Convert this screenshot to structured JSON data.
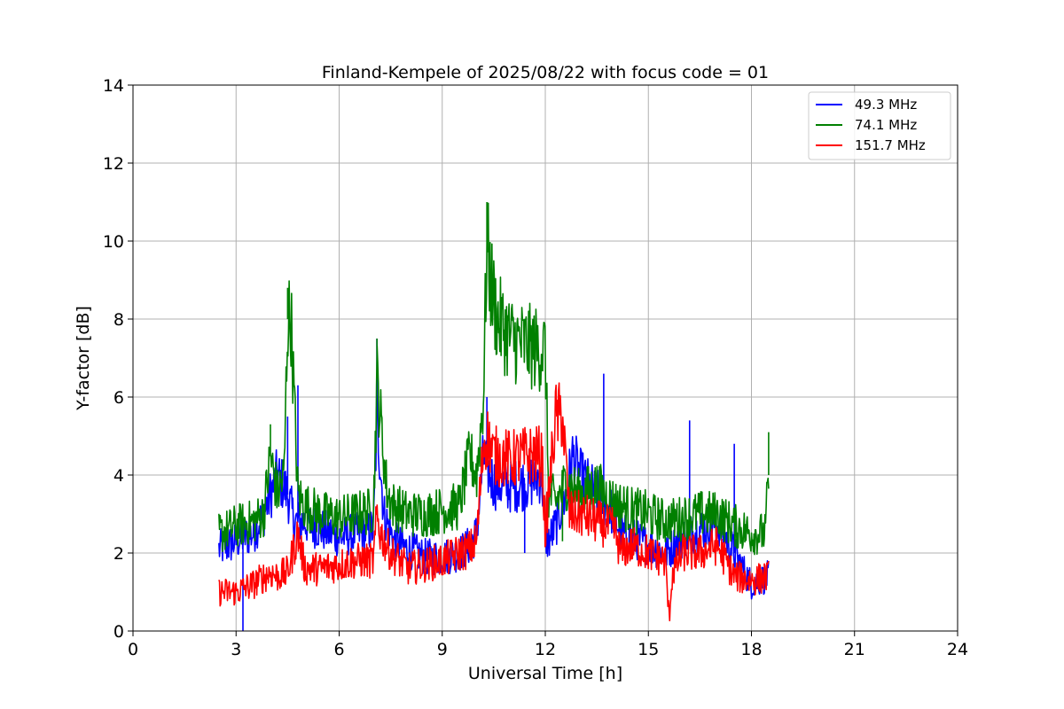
{
  "chart_data": {
    "type": "line",
    "title": "Finland-Kempele of 2025/08/22 with focus code = 01",
    "xlabel": "Universal Time [h]",
    "ylabel": "Y-factor [dB]",
    "xlim": [
      0,
      24
    ],
    "ylim": [
      0,
      14
    ],
    "xticks": [
      0,
      3,
      6,
      9,
      12,
      15,
      18,
      21,
      24
    ],
    "yticks": [
      0,
      2,
      4,
      6,
      8,
      10,
      12,
      14
    ],
    "grid": true,
    "legend_position": "top-right",
    "series": [
      {
        "name": " 49.3 MHz",
        "color": "#0000ff",
        "x": [
          2.5,
          2.8,
          3.0,
          3.2,
          3.5,
          3.8,
          4.0,
          4.2,
          4.5,
          4.7,
          5.0,
          5.5,
          6.0,
          6.5,
          7.0,
          7.1,
          7.3,
          7.6,
          8.0,
          8.5,
          9.0,
          9.5,
          9.8,
          10.0,
          10.2,
          10.3,
          10.5,
          11.0,
          11.5,
          11.9,
          12.0,
          12.1,
          12.3,
          12.6,
          12.8,
          13.0,
          13.5,
          14.0,
          14.2,
          14.5,
          15.0,
          15.5,
          16.0,
          16.5,
          17.0,
          17.5,
          18.0,
          18.5
        ],
        "y": [
          2.1,
          2.2,
          2.3,
          2.4,
          2.5,
          3.0,
          3.5,
          4.0,
          3.5,
          2.8,
          2.8,
          2.6,
          2.4,
          2.5,
          2.6,
          5.5,
          3.0,
          2.3,
          2.1,
          1.9,
          1.9,
          2.0,
          2.2,
          2.5,
          4.5,
          4.2,
          3.8,
          3.7,
          3.8,
          4.0,
          2.4,
          2.3,
          2.7,
          3.5,
          4.5,
          4.0,
          3.5,
          3.0,
          2.5,
          2.4,
          2.2,
          2.0,
          2.4,
          2.6,
          2.8,
          2.0,
          1.2,
          1.4
        ],
        "spikes": [
          [
            3.2,
            0.0
          ],
          [
            4.5,
            5.5
          ],
          [
            4.8,
            6.3
          ],
          [
            7.1,
            7.5
          ],
          [
            10.3,
            6.0
          ],
          [
            11.4,
            2.0
          ],
          [
            13.7,
            6.6
          ],
          [
            16.2,
            5.4
          ],
          [
            17.5,
            4.8
          ]
        ]
      },
      {
        "name": " 74.1 MHz",
        "color": "#008000",
        "x": [
          2.5,
          2.8,
          3.0,
          3.5,
          3.8,
          4.0,
          4.2,
          4.4,
          4.5,
          4.6,
          4.8,
          5.0,
          5.5,
          6.0,
          6.5,
          7.0,
          7.1,
          7.2,
          7.4,
          7.6,
          8.0,
          8.5,
          9.0,
          9.5,
          9.8,
          10.0,
          10.2,
          10.3,
          10.4,
          10.6,
          11.0,
          11.5,
          12.0,
          12.1,
          12.3,
          12.6,
          13.0,
          13.5,
          14.0,
          14.5,
          15.0,
          15.5,
          16.0,
          16.5,
          17.0,
          17.5,
          18.0,
          18.4,
          18.5
        ],
        "y": [
          2.5,
          2.6,
          2.7,
          2.8,
          3.0,
          4.5,
          3.5,
          4.0,
          8.0,
          8.0,
          3.5,
          3.2,
          3.0,
          2.9,
          3.0,
          3.1,
          6.5,
          5.5,
          3.5,
          3.2,
          3.0,
          3.0,
          3.1,
          3.2,
          4.5,
          4.0,
          6.0,
          10.0,
          9.0,
          8.0,
          7.5,
          7.3,
          7.2,
          3.5,
          3.3,
          3.8,
          3.5,
          3.7,
          3.3,
          3.1,
          3.0,
          2.8,
          2.9,
          3.0,
          3.0,
          2.7,
          2.5,
          2.5,
          4.0
        ],
        "spikes": [
          [
            4.0,
            5.3
          ],
          [
            4.5,
            8.8
          ],
          [
            7.1,
            7.5
          ],
          [
            10.3,
            11.0
          ],
          [
            12.5,
            2.3
          ],
          [
            18.5,
            5.1
          ]
        ]
      },
      {
        "name": " 151.7 MHz",
        "color": "#ff0000",
        "x": [
          2.5,
          2.8,
          3.0,
          3.5,
          4.0,
          4.2,
          4.5,
          4.8,
          5.0,
          5.5,
          6.0,
          6.5,
          7.0,
          7.1,
          7.2,
          7.5,
          8.0,
          8.5,
          9.0,
          9.5,
          9.8,
          10.0,
          10.2,
          10.3,
          10.5,
          11.0,
          11.5,
          11.9,
          12.0,
          12.1,
          12.3,
          12.5,
          12.7,
          13.0,
          13.5,
          14.0,
          14.2,
          14.5,
          15.0,
          15.5,
          15.6,
          15.7,
          16.0,
          16.5,
          17.0,
          17.5,
          18.0,
          18.5
        ],
        "y": [
          1.0,
          1.0,
          1.0,
          1.2,
          1.5,
          1.4,
          1.5,
          2.5,
          1.6,
          1.6,
          1.7,
          1.8,
          1.8,
          3.0,
          2.5,
          2.0,
          1.6,
          1.7,
          1.8,
          2.0,
          2.1,
          2.3,
          4.8,
          5.0,
          4.5,
          4.4,
          4.5,
          4.5,
          2.5,
          3.5,
          5.5,
          5.5,
          3.0,
          3.0,
          2.8,
          2.6,
          2.0,
          2.2,
          2.0,
          1.8,
          0.3,
          1.5,
          2.0,
          2.0,
          2.2,
          1.4,
          1.3,
          1.4
        ]
      }
    ]
  }
}
